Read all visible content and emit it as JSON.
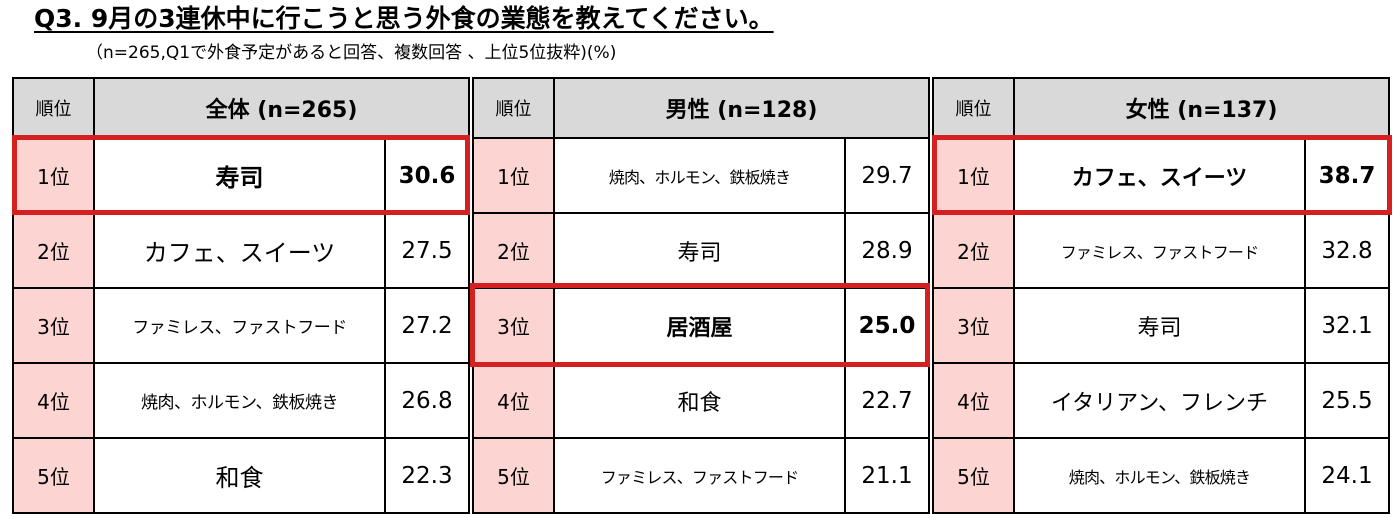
{
  "title": "Q3. 9月の3連休中に行こうと思う外食の業態を教えてください。",
  "subtitle": "（n=265,Q1で外食予定があると回答、複数回答 、上位5位抜粋)(%)",
  "rank_header": "順位",
  "highlight_color": "#d42020",
  "rank_cell_color": "#fcd5d2",
  "header_color": "#d9d9d9",
  "chart_data": {
    "type": "table",
    "unit": "%",
    "tables": [
      {
        "group": "全体 (n=265)",
        "rows": [
          {
            "rank": "1位",
            "name": "寿司",
            "value": "30.6",
            "highlighted": true
          },
          {
            "rank": "2位",
            "name": "カフェ、スイーツ",
            "value": "27.5"
          },
          {
            "rank": "3位",
            "name": "ファミレス、ファストフード",
            "value": "27.2"
          },
          {
            "rank": "4位",
            "name": "焼肉、ホルモン、鉄板焼き",
            "value": "26.8"
          },
          {
            "rank": "5位",
            "name": "和食",
            "value": "22.3"
          }
        ]
      },
      {
        "group": "男性 (n=128)",
        "rows": [
          {
            "rank": "1位",
            "name": "焼肉、ホルモン、鉄板焼き",
            "value": "29.7"
          },
          {
            "rank": "2位",
            "name": "寿司",
            "value": "28.9"
          },
          {
            "rank": "3位",
            "name": "居酒屋",
            "value": "25.0",
            "highlighted": true
          },
          {
            "rank": "4位",
            "name": "和食",
            "value": "22.7"
          },
          {
            "rank": "5位",
            "name": "ファミレス、ファストフード",
            "value": "21.1"
          }
        ]
      },
      {
        "group": "女性 (n=137)",
        "rows": [
          {
            "rank": "1位",
            "name": "カフェ、スイーツ",
            "value": "38.7",
            "highlighted": true
          },
          {
            "rank": "2位",
            "name": "ファミレス、ファストフード",
            "value": "32.8"
          },
          {
            "rank": "3位",
            "name": "寿司",
            "value": "32.1"
          },
          {
            "rank": "4位",
            "name": "イタリアン、フレンチ",
            "value": "25.5"
          },
          {
            "rank": "5位",
            "name": "焼肉、ホルモン、鉄板焼き",
            "value": "24.1"
          }
        ]
      }
    ]
  }
}
